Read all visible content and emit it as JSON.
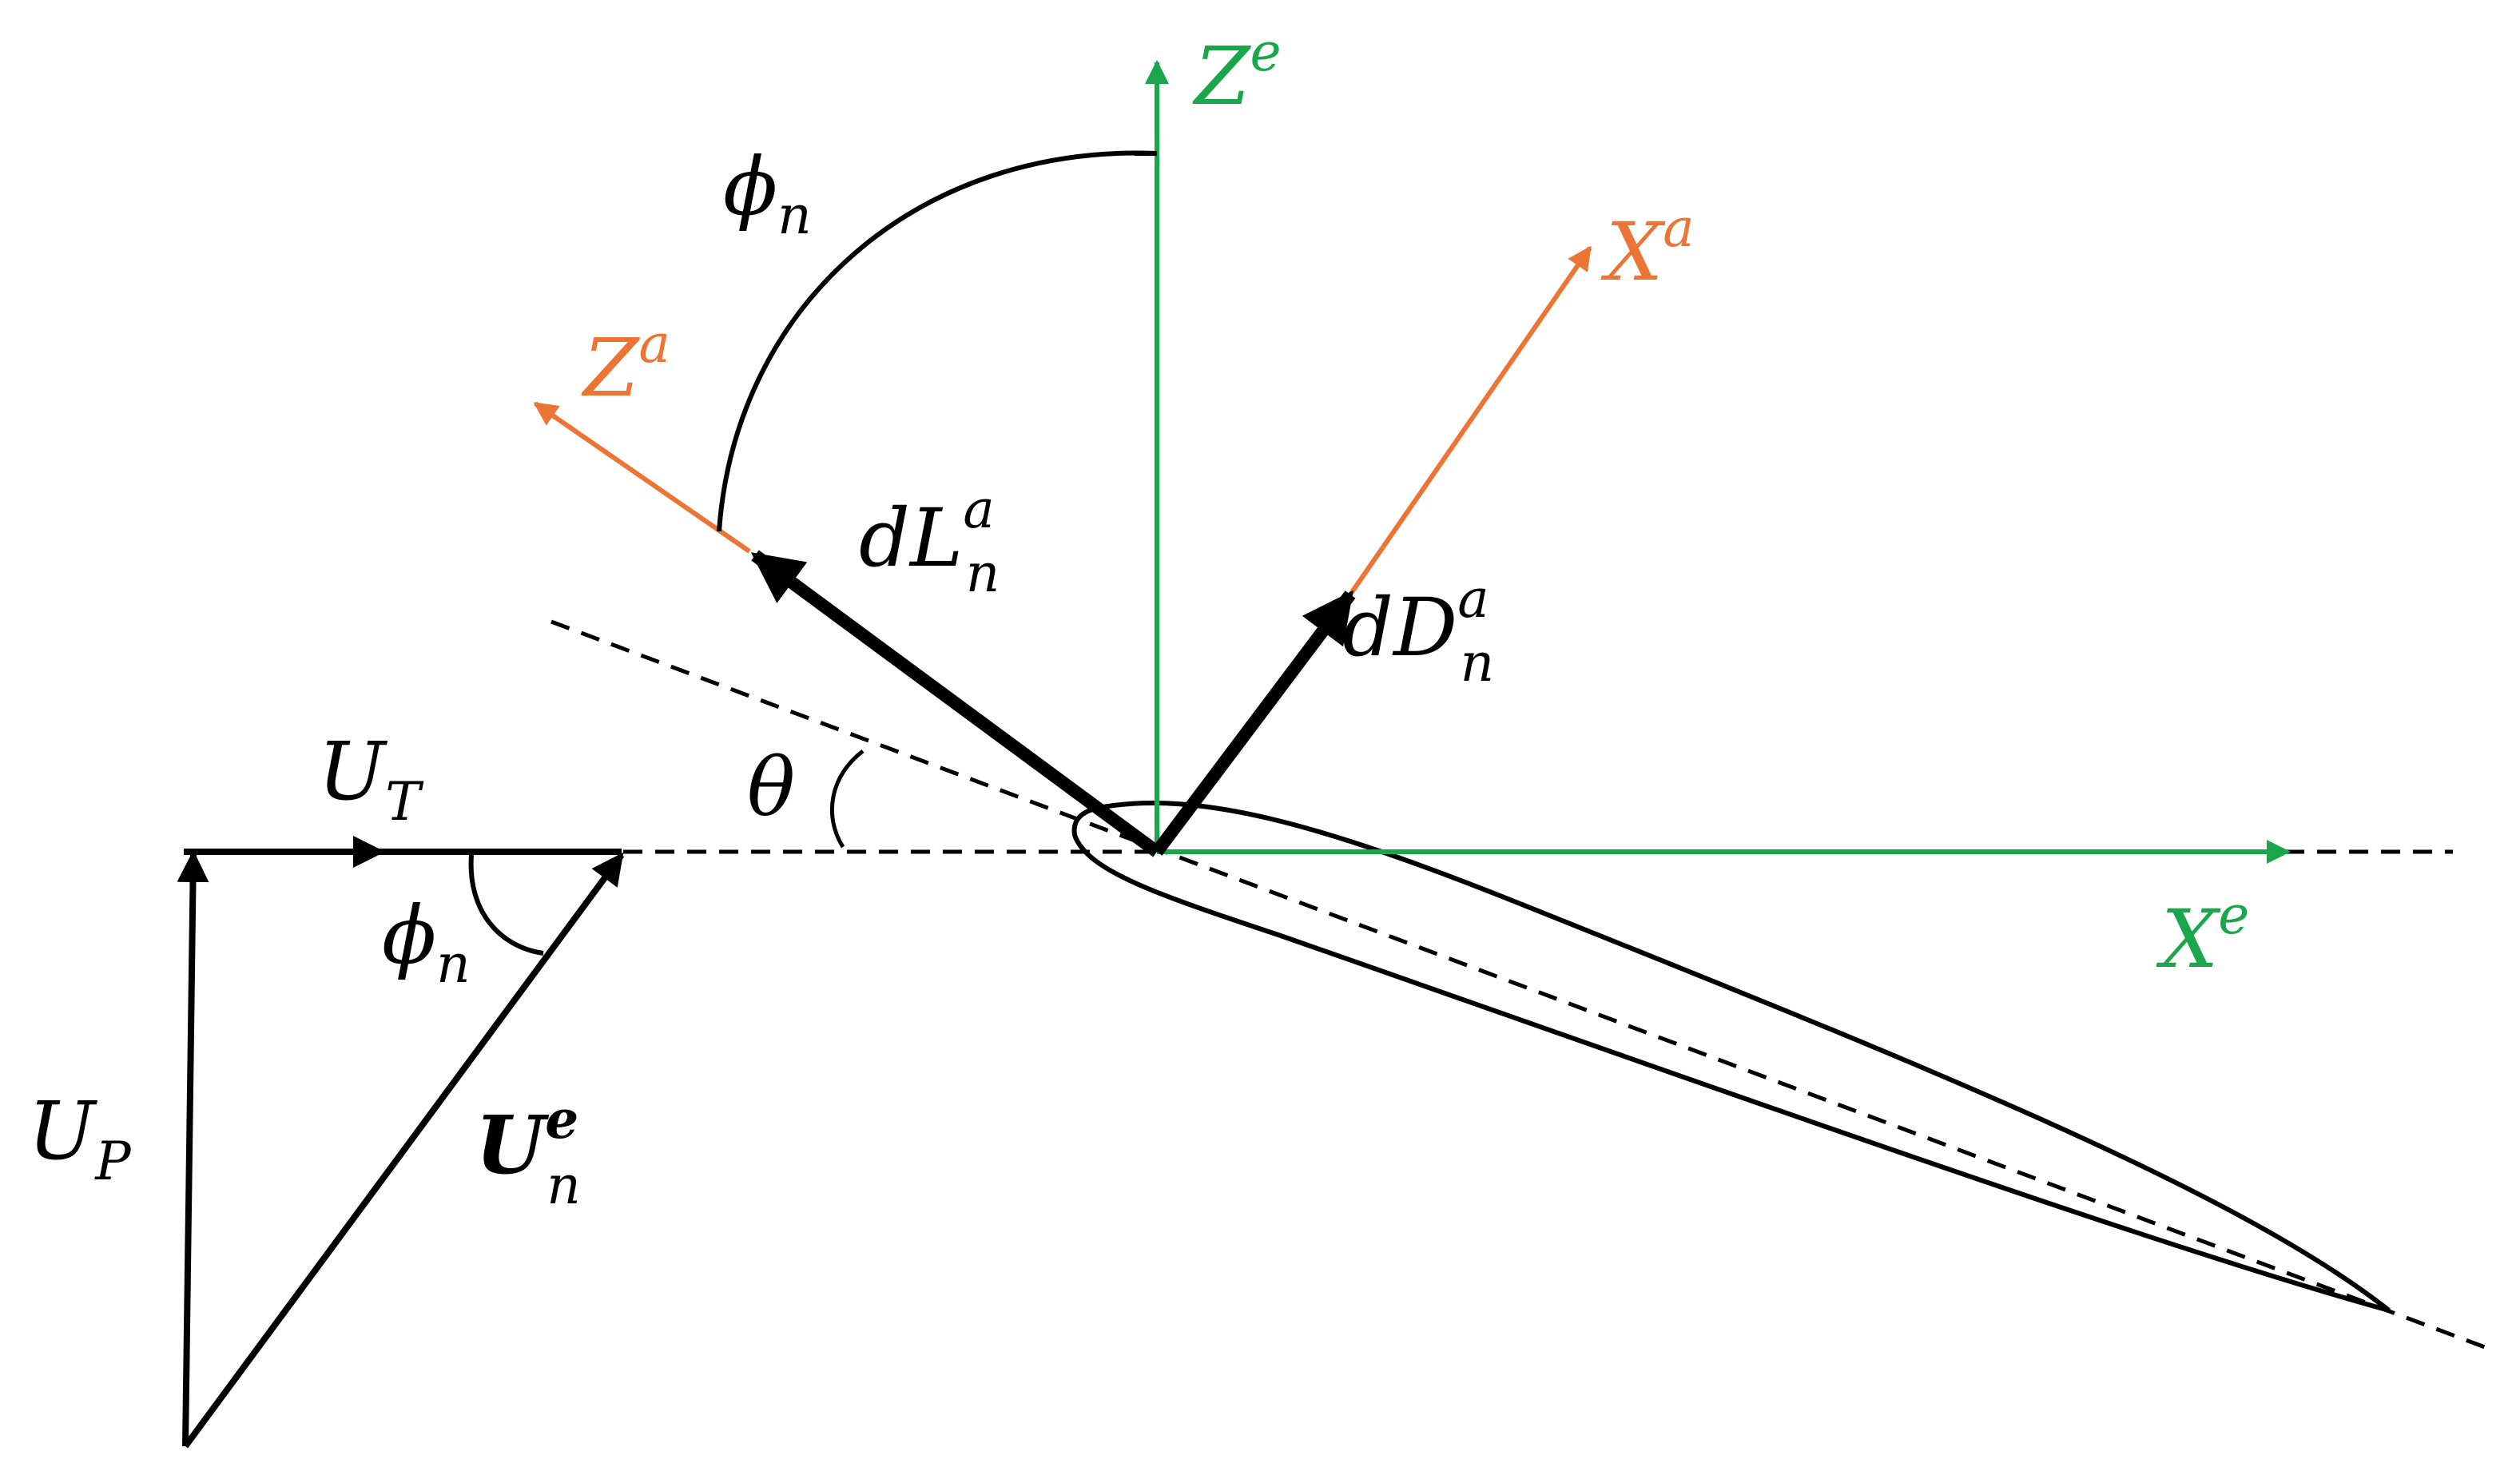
{
  "colors": {
    "earth_frame": "#1aa64a",
    "airfoil_frame": "#ec7434",
    "ink": "#000000"
  },
  "labels": {
    "Ze": {
      "base": "Z",
      "sup": "e"
    },
    "Xe": {
      "base": "X",
      "sup": "e"
    },
    "Xa": {
      "base": "X",
      "sup": "a"
    },
    "Za": {
      "base": "Z",
      "sup": "a"
    },
    "phi_top": {
      "base": "ϕ",
      "sub": "n"
    },
    "phi_bottom": {
      "base": "ϕ",
      "sub": "n"
    },
    "dL": {
      "base": "dL",
      "sup": "a",
      "sub": "n"
    },
    "dD": {
      "base": "dD",
      "sup": "a",
      "sub": "n"
    },
    "theta": {
      "base": "θ"
    },
    "UT": {
      "base": "U",
      "sub": "T"
    },
    "UP": {
      "base": "U",
      "sub": "P"
    },
    "Ue": {
      "base": "U",
      "sup": "e",
      "sub": "n"
    }
  }
}
